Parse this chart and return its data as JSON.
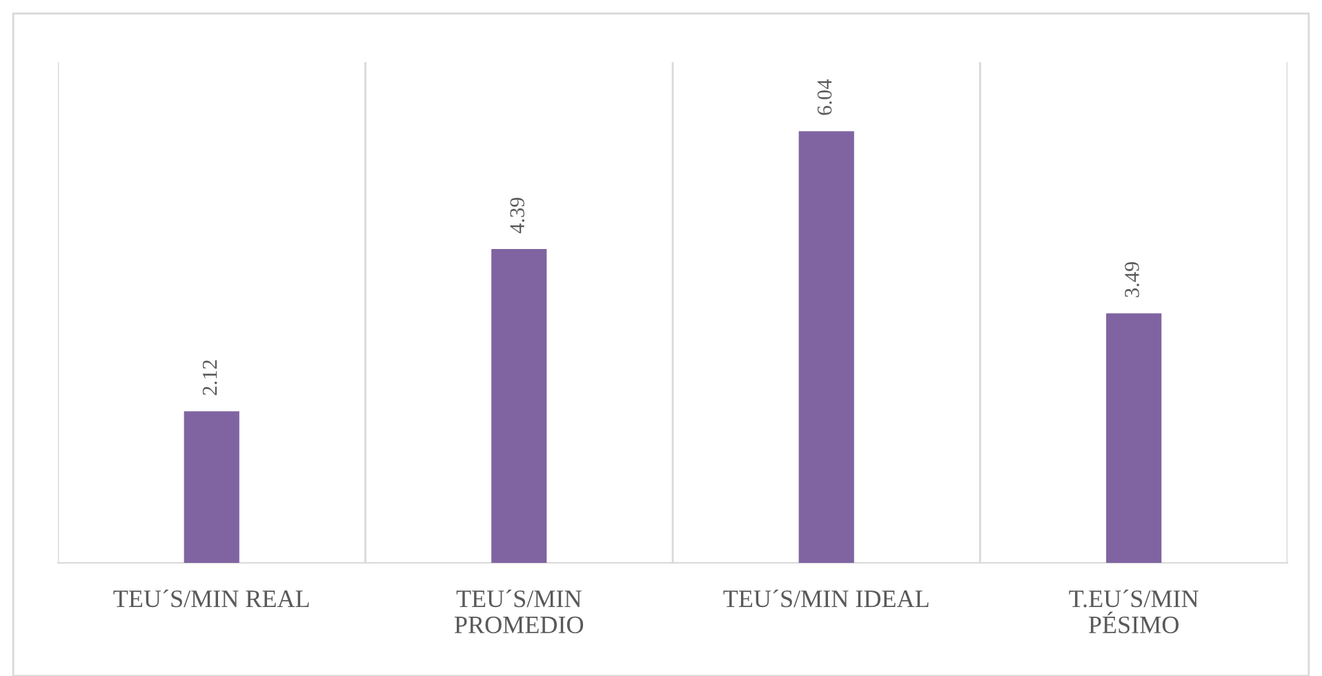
{
  "chart_data": {
    "type": "bar",
    "categories": [
      "TEU´S/MIN REAL",
      "TEU´S/MIN PROMEDIO",
      "TEU´S/MIN IDEAL",
      "T.EU´S/MIN PÉSIMO"
    ],
    "values": [
      2.12,
      4.39,
      6.04,
      3.49
    ],
    "color": "#8064a2",
    "data_labels": true,
    "grid": "x",
    "tick_labels": "x"
  }
}
